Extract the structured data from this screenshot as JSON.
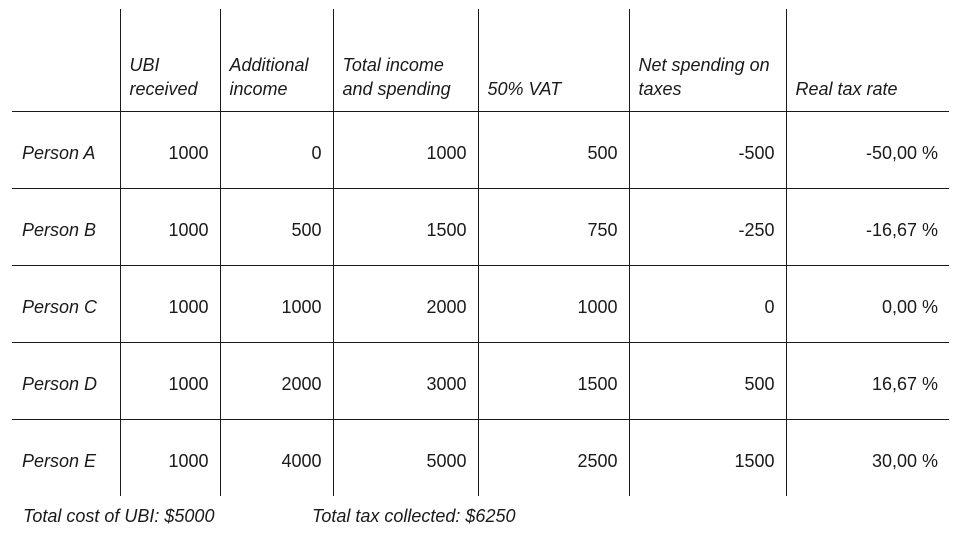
{
  "table": {
    "headers": [
      "",
      "UBI received",
      "Additional income",
      "Total income and spending",
      "50% VAT",
      "Net spending on taxes",
      "Real tax rate"
    ],
    "rows": [
      {
        "name": "Person A",
        "ubi": "1000",
        "additional": "0",
        "total": "1000",
        "vat": "500",
        "net": "-500",
        "rate": "-50,00 %"
      },
      {
        "name": "Person B",
        "ubi": "1000",
        "additional": "500",
        "total": "1500",
        "vat": "750",
        "net": "-250",
        "rate": "-16,67 %"
      },
      {
        "name": "Person C",
        "ubi": "1000",
        "additional": "1000",
        "total": "2000",
        "vat": "1000",
        "net": "0",
        "rate": "0,00 %"
      },
      {
        "name": "Person D",
        "ubi": "1000",
        "additional": "2000",
        "total": "3000",
        "vat": "1500",
        "net": "500",
        "rate": "16,67 %"
      },
      {
        "name": "Person E",
        "ubi": "1000",
        "additional": "4000",
        "total": "5000",
        "vat": "2500",
        "net": "1500",
        "rate": "30,00 %"
      }
    ]
  },
  "footer": {
    "total_cost": "Total cost of UBI: $5000",
    "total_tax": "Total tax collected: $6250"
  }
}
